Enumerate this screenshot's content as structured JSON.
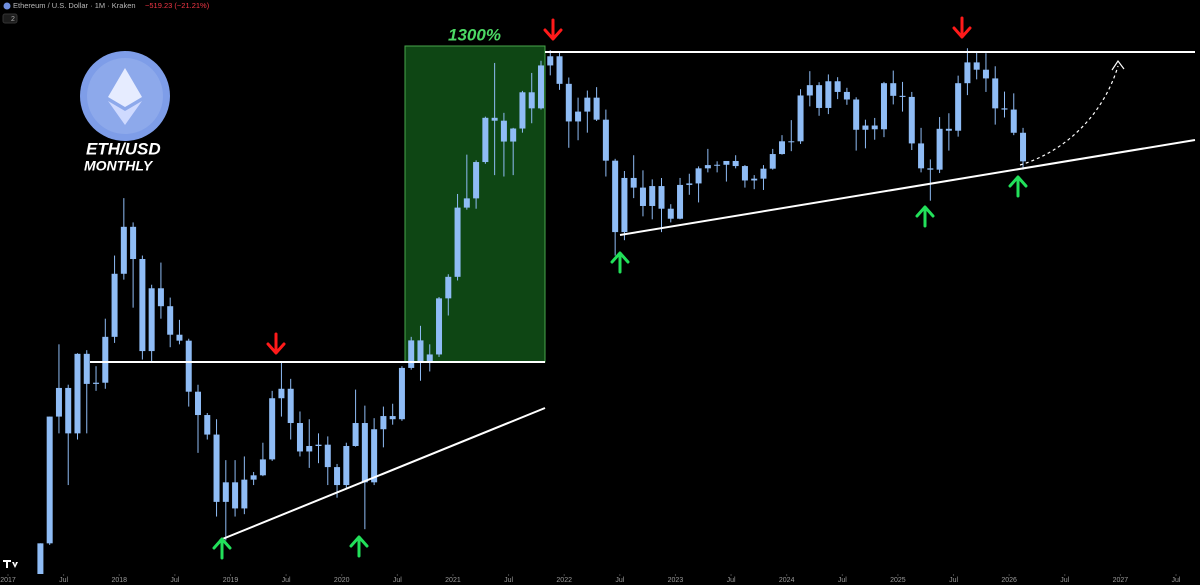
{
  "chart_data": {
    "type": "candlestick",
    "title": "Ethereum / U.S. Dollar · 1M · Kraken",
    "change_label": "−519.23 (−21.21%)",
    "pane_badge": "2",
    "annotations": [
      "ETH/USD",
      "MONTHLY",
      "1300%"
    ],
    "color": "#8fbcf5",
    "log_scale": true,
    "grid": false,
    "ylim": [
      63,
      7400
    ],
    "xticks": [
      {
        "value": "2017-01",
        "label": "2017"
      },
      {
        "value": "2017-07",
        "label": "Jul"
      },
      {
        "value": "2018-01",
        "label": "2018"
      },
      {
        "value": "2018-07",
        "label": "Jul"
      },
      {
        "value": "2019-01",
        "label": "2019"
      },
      {
        "value": "2019-07",
        "label": "Jul"
      },
      {
        "value": "2020-01",
        "label": "2020"
      },
      {
        "value": "2020-07",
        "label": "Jul"
      },
      {
        "value": "2021-01",
        "label": "2021"
      },
      {
        "value": "2021-07",
        "label": "Jul"
      },
      {
        "value": "2022-01",
        "label": "2022"
      },
      {
        "value": "2022-07",
        "label": "Jul"
      },
      {
        "value": "2023-01",
        "label": "2023"
      },
      {
        "value": "2023-07",
        "label": "Jul"
      },
      {
        "value": "2024-01",
        "label": "2024"
      },
      {
        "value": "2024-07",
        "label": "Jul"
      },
      {
        "value": "2025-01",
        "label": "2025"
      },
      {
        "value": "2025-07",
        "label": "Jul"
      },
      {
        "value": "2026-01",
        "label": "2026"
      },
      {
        "value": "2026-07",
        "label": "Jul"
      },
      {
        "value": "2027-01",
        "label": "2027"
      },
      {
        "value": "2027-07",
        "label": "Jul"
      }
    ],
    "x": [
      "2017-04",
      "2017-05",
      "2017-06",
      "2017-07",
      "2017-08",
      "2017-09",
      "2017-10",
      "2017-11",
      "2017-12",
      "2018-01",
      "2018-02",
      "2018-03",
      "2018-04",
      "2018-05",
      "2018-06",
      "2018-07",
      "2018-08",
      "2018-09",
      "2018-10",
      "2018-11",
      "2018-12",
      "2019-01",
      "2019-02",
      "2019-03",
      "2019-04",
      "2019-05",
      "2019-06",
      "2019-07",
      "2019-08",
      "2019-09",
      "2019-10",
      "2019-11",
      "2019-12",
      "2020-01",
      "2020-02",
      "2020-03",
      "2020-04",
      "2020-05",
      "2020-06",
      "2020-07",
      "2020-08",
      "2020-09",
      "2020-10",
      "2020-11",
      "2020-12",
      "2021-01",
      "2021-02",
      "2021-03",
      "2021-04",
      "2021-05",
      "2021-06",
      "2021-07",
      "2021-08",
      "2021-09",
      "2021-10",
      "2021-11",
      "2021-12",
      "2022-01",
      "2022-02",
      "2022-03",
      "2022-04",
      "2022-05",
      "2022-06",
      "2022-07",
      "2022-08",
      "2022-09",
      "2022-10",
      "2022-11",
      "2022-12",
      "2023-01",
      "2023-02",
      "2023-03",
      "2023-04",
      "2023-05",
      "2023-06",
      "2023-07",
      "2023-08",
      "2023-09",
      "2023-10",
      "2023-11",
      "2023-12",
      "2024-01",
      "2024-02",
      "2024-03",
      "2024-04",
      "2024-05",
      "2024-06",
      "2024-07",
      "2024-08",
      "2024-09",
      "2024-10",
      "2024-11",
      "2024-12",
      "2025-01",
      "2025-02",
      "2025-03",
      "2025-04",
      "2025-05",
      "2025-06",
      "2025-07",
      "2025-08",
      "2025-09",
      "2025-10",
      "2025-11",
      "2025-12",
      "2026-01",
      "2026-02"
    ],
    "open": [
      50,
      80,
      230,
      292,
      200,
      388,
      302,
      305,
      447,
      756,
      1118,
      855,
      397,
      670,
      577,
      455,
      433,
      283,
      233,
      198,
      113,
      133,
      107,
      136,
      141,
      161,
      268,
      290,
      218,
      172,
      180,
      182,
      151,
      130,
      180,
      218,
      133,
      207,
      231,
      225,
      345,
      434,
      360,
      386,
      616,
      737,
      1312,
      1417,
      1918,
      2773,
      2707,
      2275,
      2536,
      3430,
      3000,
      4290,
      4630,
      3680,
      2690,
      2920,
      3280,
      2730,
      1940,
      1070,
      1680,
      1550,
      1330,
      1570,
      1300,
      1196,
      1585,
      1605,
      1820,
      1870,
      1875,
      1935,
      1855,
      1645,
      1670,
      1815,
      2050,
      2280,
      2280,
      3340,
      3640,
      3010,
      3760,
      3440,
      3230,
      2510,
      2600,
      2520,
      3700,
      3330,
      3300,
      2240,
      1820,
      1800,
      2530,
      2490,
      3700,
      4400,
      4140,
      3850,
      3000,
      2970,
      2448
    ],
    "high": [
      80,
      230,
      420,
      300,
      390,
      400,
      350,
      520,
      880,
      1420,
      1160,
      880,
      690,
      830,
      620,
      515,
      440,
      300,
      237,
      225,
      160,
      160,
      165,
      145,
      185,
      285,
      365,
      315,
      240,
      225,
      200,
      195,
      155,
      185,
      288,
      252,
      227,
      250,
      256,
      350,
      447,
      490,
      420,
      623,
      753,
      1470,
      2040,
      1945,
      2800,
      4380,
      2890,
      2550,
      3470,
      4030,
      4460,
      4870,
      4780,
      3880,
      3280,
      3480,
      3580,
      2970,
      1970,
      1780,
      2030,
      1790,
      1660,
      1680,
      1350,
      1680,
      1740,
      1850,
      2140,
      1930,
      1930,
      2030,
      1870,
      1720,
      1870,
      2140,
      2400,
      2720,
      3520,
      4090,
      3730,
      3980,
      3890,
      3560,
      3290,
      2730,
      2770,
      3740,
      4110,
      3740,
      3440,
      2550,
      1960,
      2790,
      2880,
      3940,
      4950,
      4770,
      4750,
      4260,
      3450,
      3400,
      2550
    ],
    "low": [
      48,
      79,
      200,
      130,
      190,
      200,
      285,
      290,
      425,
      720,
      570,
      370,
      360,
      520,
      410,
      420,
      250,
      170,
      190,
      100,
      82,
      100,
      102,
      130,
      140,
      159,
      230,
      190,
      165,
      150,
      156,
      130,
      117,
      127,
      179,
      90,
      130,
      178,
      215,
      222,
      340,
      310,
      335,
      378,
      534,
      715,
      1290,
      1300,
      1890,
      1720,
      1700,
      1720,
      2450,
      2650,
      2970,
      3950,
      3500,
      2160,
      2300,
      2450,
      2700,
      1700,
      880,
      1000,
      1420,
      1220,
      1190,
      1070,
      1160,
      1190,
      1460,
      1370,
      1760,
      1760,
      1630,
      1820,
      1550,
      1530,
      1520,
      1800,
      2040,
      2100,
      2230,
      3050,
      2820,
      2860,
      3240,
      3090,
      2110,
      2150,
      2310,
      2360,
      3100,
      2920,
      2120,
      1760,
      1390,
      1750,
      2110,
      2370,
      3350,
      3820,
      3440,
      2620,
      2780,
      2400,
      1800
    ],
    "close": [
      80,
      230,
      292,
      200,
      388,
      302,
      305,
      447,
      756,
      1118,
      855,
      397,
      670,
      577,
      455,
      433,
      283,
      233,
      198,
      113,
      133,
      107,
      136,
      141,
      161,
      268,
      290,
      218,
      172,
      180,
      182,
      151,
      130,
      180,
      218,
      133,
      207,
      231,
      225,
      345,
      434,
      360,
      386,
      616,
      737,
      1312,
      1417,
      1918,
      2773,
      2707,
      2275,
      2536,
      3430,
      3000,
      4290,
      4630,
      3680,
      2690,
      2920,
      3280,
      2730,
      1940,
      1070,
      1680,
      1550,
      1330,
      1570,
      1300,
      1196,
      1585,
      1605,
      1820,
      1870,
      1875,
      1935,
      1855,
      1645,
      1670,
      1815,
      2050,
      2280,
      2280,
      3340,
      3640,
      3010,
      3760,
      3440,
      3230,
      2510,
      2600,
      2520,
      3700,
      3330,
      3300,
      2240,
      1820,
      1800,
      2530,
      2490,
      3700,
      4400,
      4140,
      3850,
      3000,
      2970,
      2448,
      1929
    ]
  }
}
